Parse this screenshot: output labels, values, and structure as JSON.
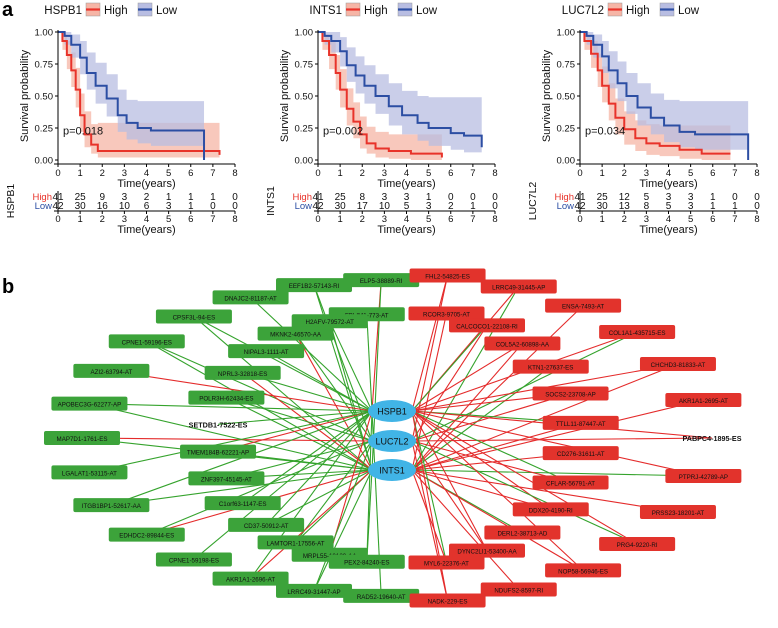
{
  "panel_labels": {
    "a": "a",
    "b": "b"
  },
  "colors": {
    "high": "#e8332a",
    "high_band": "#f6b5a6",
    "low": "#2c4ea3",
    "low_band": "#b8bde2",
    "node_green": "#3ca33a",
    "node_red": "#e2332c",
    "hub": "#41b4e6",
    "edge_green": "#35a32d",
    "edge_red": "#e42b2b"
  },
  "km_common": {
    "legend_high": "High",
    "legend_low": "Low",
    "xlabel": "Time(years)",
    "ylabel": "Survival probability",
    "yticks": [
      "0.00",
      "0.25",
      "0.50",
      "0.75",
      "1.00"
    ],
    "xticks": [
      "0",
      "1",
      "2",
      "3",
      "4",
      "5",
      "6",
      "7",
      "8"
    ],
    "risk_high_label": "High",
    "risk_low_label": "Low"
  },
  "chart_data": [
    {
      "type": "line",
      "title": "HSPB1",
      "pvalue": "p=0.018",
      "xlabel": "Time(years)",
      "ylabel": "Survival probability",
      "xlim": [
        0,
        8
      ],
      "ylim": [
        0,
        1
      ],
      "series": [
        {
          "name": "High",
          "x": [
            0,
            0.2,
            0.4,
            0.6,
            0.8,
            1.0,
            1.2,
            1.5,
            1.8,
            2.2,
            3.0,
            4.5,
            6.0,
            7.3
          ],
          "y": [
            1.0,
            0.93,
            0.82,
            0.7,
            0.55,
            0.35,
            0.2,
            0.12,
            0.07,
            0.07,
            0.07,
            0.07,
            0.07,
            0.04
          ],
          "lower": [
            1.0,
            0.86,
            0.71,
            0.57,
            0.41,
            0.22,
            0.1,
            0.05,
            0.02,
            0.02,
            0.02,
            0.02,
            0.02,
            0.01
          ],
          "upper": [
            1.0,
            0.98,
            0.93,
            0.84,
            0.72,
            0.52,
            0.38,
            0.28,
            0.29,
            0.29,
            0.29,
            0.29,
            0.29,
            0.29
          ]
        },
        {
          "name": "Low",
          "x": [
            0,
            0.3,
            0.6,
            1.0,
            1.3,
            1.7,
            2.2,
            2.7,
            3.1,
            3.6,
            4.2,
            5.0,
            6.0,
            6.6
          ],
          "y": [
            1.0,
            0.97,
            0.9,
            0.8,
            0.68,
            0.58,
            0.48,
            0.35,
            0.29,
            0.25,
            0.23,
            0.23,
            0.23,
            0.0
          ],
          "lower": [
            1.0,
            0.9,
            0.8,
            0.67,
            0.55,
            0.44,
            0.34,
            0.22,
            0.16,
            0.13,
            0.11,
            0.11,
            0.11,
            0.0
          ],
          "upper": [
            1.0,
            1.0,
            0.98,
            0.93,
            0.84,
            0.76,
            0.67,
            0.55,
            0.47,
            0.46,
            0.46,
            0.46,
            0.46,
            0.46
          ]
        }
      ],
      "risk_label": "HSPB1",
      "risk_high": [
        41,
        25,
        9,
        3,
        2,
        1,
        1,
        1,
        0
      ],
      "risk_low": [
        42,
        30,
        16,
        10,
        6,
        3,
        1,
        0,
        0
      ]
    },
    {
      "type": "line",
      "title": "INTS1",
      "pvalue": "p=0.002",
      "xlabel": "Time(years)",
      "ylabel": "Survival probability",
      "xlim": [
        0,
        8
      ],
      "ylim": [
        0,
        1
      ],
      "series": [
        {
          "name": "High",
          "x": [
            0,
            0.2,
            0.5,
            0.8,
            1.0,
            1.3,
            1.6,
            1.9,
            2.2,
            2.6,
            3.2,
            4.2,
            5.6
          ],
          "y": [
            1.0,
            0.93,
            0.82,
            0.68,
            0.55,
            0.4,
            0.3,
            0.2,
            0.13,
            0.09,
            0.07,
            0.05,
            0.02
          ],
          "lower": [
            1.0,
            0.86,
            0.71,
            0.55,
            0.41,
            0.27,
            0.17,
            0.09,
            0.05,
            0.02,
            0.01,
            0.0,
            0.0
          ],
          "upper": [
            1.0,
            0.98,
            0.93,
            0.82,
            0.71,
            0.56,
            0.45,
            0.34,
            0.26,
            0.22,
            0.2,
            0.2,
            0.2
          ]
        },
        {
          "name": "Low",
          "x": [
            0,
            0.3,
            0.6,
            1.0,
            1.3,
            1.7,
            2.1,
            2.6,
            3.2,
            3.8,
            4.5,
            5.0,
            6.0,
            6.6,
            7.4
          ],
          "y": [
            1.0,
            0.97,
            0.93,
            0.85,
            0.74,
            0.66,
            0.58,
            0.5,
            0.42,
            0.35,
            0.29,
            0.25,
            0.21,
            0.19,
            0.1
          ],
          "lower": [
            1.0,
            0.9,
            0.84,
            0.73,
            0.61,
            0.52,
            0.44,
            0.36,
            0.27,
            0.2,
            0.15,
            0.11,
            0.08,
            0.06,
            0.0
          ],
          "upper": [
            1.0,
            1.0,
            1.0,
            0.96,
            0.88,
            0.81,
            0.74,
            0.67,
            0.6,
            0.54,
            0.5,
            0.49,
            0.49,
            0.49,
            0.49
          ]
        }
      ],
      "risk_label": "INTS1",
      "risk_high": [
        41,
        25,
        8,
        3,
        3,
        1,
        0,
        0,
        0
      ],
      "risk_low": [
        42,
        30,
        17,
        10,
        5,
        3,
        2,
        1,
        0
      ]
    },
    {
      "type": "line",
      "title": "LUC7L2",
      "pvalue": "p=0.034",
      "xlabel": "Time(years)",
      "ylabel": "Survival probability",
      "xlim": [
        0,
        8
      ],
      "ylim": [
        0,
        1
      ],
      "series": [
        {
          "name": "High",
          "x": [
            0,
            0.2,
            0.5,
            0.8,
            1.0,
            1.3,
            1.6,
            2.0,
            2.5,
            3.0,
            3.6,
            4.5,
            5.5,
            6.8
          ],
          "y": [
            1.0,
            0.93,
            0.83,
            0.7,
            0.58,
            0.44,
            0.33,
            0.24,
            0.17,
            0.13,
            0.11,
            0.08,
            0.05,
            0.05
          ],
          "lower": [
            1.0,
            0.86,
            0.72,
            0.57,
            0.45,
            0.31,
            0.2,
            0.12,
            0.07,
            0.04,
            0.03,
            0.01,
            0.0,
            0.0
          ],
          "upper": [
            1.0,
            0.98,
            0.93,
            0.83,
            0.73,
            0.6,
            0.48,
            0.38,
            0.31,
            0.28,
            0.27,
            0.27,
            0.27,
            0.27
          ]
        },
        {
          "name": "Low",
          "x": [
            0,
            0.3,
            0.6,
            1.0,
            1.3,
            1.7,
            2.1,
            2.6,
            3.2,
            3.8,
            4.5,
            5.2,
            6.2,
            7.6
          ],
          "y": [
            1.0,
            0.97,
            0.9,
            0.81,
            0.7,
            0.6,
            0.5,
            0.41,
            0.33,
            0.27,
            0.22,
            0.2,
            0.2,
            0.0
          ],
          "lower": [
            1.0,
            0.9,
            0.8,
            0.68,
            0.56,
            0.46,
            0.36,
            0.27,
            0.2,
            0.14,
            0.1,
            0.08,
            0.08,
            0.0
          ],
          "upper": [
            1.0,
            1.0,
            0.98,
            0.93,
            0.85,
            0.77,
            0.68,
            0.6,
            0.52,
            0.47,
            0.46,
            0.46,
            0.46,
            0.46
          ]
        }
      ],
      "risk_label": "LUC7L2",
      "risk_high": [
        41,
        25,
        12,
        5,
        3,
        3,
        1,
        0,
        0
      ],
      "risk_low": [
        42,
        30,
        13,
        8,
        5,
        3,
        1,
        1,
        0
      ]
    }
  ],
  "network": {
    "hubs": [
      "HSPB1",
      "LUC7L2",
      "INTS1"
    ],
    "left_nodes": [
      {
        "label": "ELP5-38889-RI",
        "bold": false
      },
      {
        "label": "FBLIM1-773-AT",
        "bold": false
      },
      {
        "label": "EEF1B2-57143-RI",
        "bold": false
      },
      {
        "label": "H2AFV-79572-AT",
        "bold": false
      },
      {
        "label": "DNAJC2-81187-AT",
        "bold": false
      },
      {
        "label": "MKNK2-46570-AA",
        "bold": false
      },
      {
        "label": "CPSF3L-94-ES",
        "bold": false
      },
      {
        "label": "NIPAL3-1111-AT",
        "bold": false
      },
      {
        "label": "CPNE1-59196-ES",
        "bold": false
      },
      {
        "label": "NPRL3-32818-ES",
        "bold": false
      },
      {
        "label": "AZI2-63794-AT",
        "bold": false
      },
      {
        "label": "POLR3H-62434-ES",
        "bold": false
      },
      {
        "label": "APOBEC3G-62277-AP",
        "bold": false
      },
      {
        "label": "SETDB1-7522-ES",
        "bold": true
      },
      {
        "label": "MAP7D1-1761-ES",
        "bold": false
      },
      {
        "label": "TMEM184B-62221-AP",
        "bold": false
      },
      {
        "label": "LGALAT1-53115-AT",
        "bold": false
      },
      {
        "label": "ZNF397-45145-AT",
        "bold": false
      },
      {
        "label": "ITGB1BP1-52617-AA",
        "bold": false
      },
      {
        "label": "C1orf63-1147-ES",
        "bold": false
      },
      {
        "label": "EDHDC2-89844-ES",
        "bold": false
      },
      {
        "label": "CD37-50912-AT",
        "bold": false
      },
      {
        "label": "CPNE1-59198-ES",
        "bold": false
      },
      {
        "label": "LAMTOR1-17556-AT",
        "bold": false
      },
      {
        "label": "AKR1A1-2696-AT",
        "bold": false
      },
      {
        "label": "MRPL55-10129-AA",
        "bold": false
      },
      {
        "label": "LRRC49-31447-AP",
        "bold": false
      },
      {
        "label": "PEX2-84240-ES",
        "bold": false
      },
      {
        "label": "RAD52-19640-AT",
        "bold": false
      }
    ],
    "right_nodes": [
      {
        "label": "FHL2-54825-ES",
        "bold": false
      },
      {
        "label": "RCOR3-9705-AT",
        "bold": false
      },
      {
        "label": "LRRC49-31445-AP",
        "bold": false
      },
      {
        "label": "CALCOCO1-22108-RI",
        "bold": false
      },
      {
        "label": "ENSA-7493-AT",
        "bold": false
      },
      {
        "label": "COL5A2-60898-AA",
        "bold": false
      },
      {
        "label": "COL1A1-435715-ES",
        "bold": false
      },
      {
        "label": "KTN1-27637-ES",
        "bold": false
      },
      {
        "label": "CHCHD3-81833-AT",
        "bold": false
      },
      {
        "label": "SOCS2-23708-AP",
        "bold": false
      },
      {
        "label": "AKR1A1-2695-AT",
        "bold": false
      },
      {
        "label": "TTLL11-87447-AT",
        "bold": false
      },
      {
        "label": "PABPC4-1895-ES",
        "bold": true
      },
      {
        "label": "CD276-31611-AT",
        "bold": false
      },
      {
        "label": "PTPRJ-42789-AP",
        "bold": false
      },
      {
        "label": "CFLAR-56791-AT",
        "bold": false
      },
      {
        "label": "PRSS23-18201-AT",
        "bold": false
      },
      {
        "label": "DDX20-4190-RI",
        "bold": false
      },
      {
        "label": "PRG4-9220-RI",
        "bold": false
      },
      {
        "label": "DERL2-38713-AD",
        "bold": false
      },
      {
        "label": "NOP58-56946-ES",
        "bold": false
      },
      {
        "label": "DYNC2LI1-53400-AA",
        "bold": false
      },
      {
        "label": "NDUFS2-8597-RI",
        "bold": false
      },
      {
        "label": "MYL6-22376-AT",
        "bold": false
      },
      {
        "label": "NADK-229-ES",
        "bold": false
      }
    ]
  }
}
